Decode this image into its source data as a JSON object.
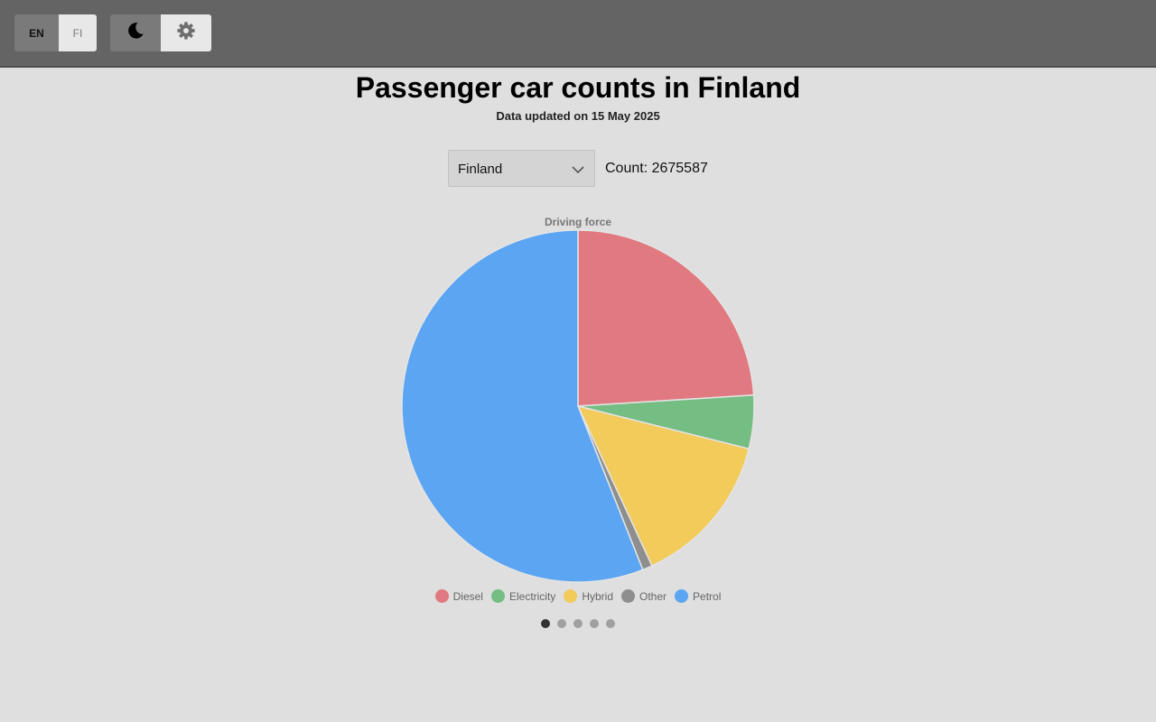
{
  "header": {
    "language": {
      "en_label": "EN",
      "fi_label": "FI",
      "selected": "EN"
    },
    "theme": {
      "dark_icon": "moon-icon",
      "settings_icon": "gear-icon"
    }
  },
  "main": {
    "title": "Passenger car counts in Finland",
    "updated": "Data updated on 15 May 2025",
    "region_select": {
      "value": "Finland"
    },
    "count_text": "Count: 2675587"
  },
  "chart_data": {
    "type": "pie",
    "title": "Driving force",
    "categories": [
      "Diesel",
      "Electricity",
      "Hybrid",
      "Other",
      "Petrol"
    ],
    "values": [
      24.0,
      4.9,
      14.2,
      0.9,
      56.0
    ],
    "value_unit": "percent (estimated)",
    "colors": [
      "#e07a80",
      "#74bd83",
      "#f2cb5b",
      "#8e8e8e",
      "#5ba5f3"
    ],
    "legend_position": "bottom"
  },
  "pager": {
    "count": 5,
    "active": 0
  }
}
